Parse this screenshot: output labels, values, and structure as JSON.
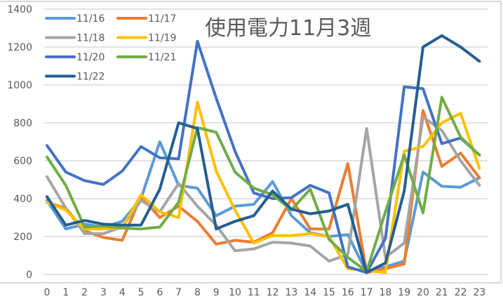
{
  "chart_data": {
    "type": "line",
    "title": "使用電力11月3週",
    "xlabel": "",
    "ylabel": "",
    "x": [
      0,
      1,
      2,
      3,
      4,
      5,
      6,
      7,
      8,
      9,
      10,
      11,
      12,
      13,
      14,
      15,
      16,
      17,
      18,
      19,
      20,
      21,
      22,
      23
    ],
    "y_ticks": [
      0,
      200,
      400,
      600,
      800,
      1000,
      1200,
      1400
    ],
    "ylim": [
      0,
      1400
    ],
    "grid": true,
    "legend_position": "top-left-inside",
    "series": [
      {
        "name": "11/16",
        "color": "#5B9BD5",
        "values": [
          390,
          240,
          265,
          250,
          280,
          400,
          700,
          470,
          455,
          310,
          360,
          370,
          490,
          310,
          220,
          200,
          210,
          10,
          40,
          70,
          540,
          465,
          460,
          510
        ]
      },
      {
        "name": "11/17",
        "color": "#ED7D31",
        "values": [
          380,
          350,
          230,
          195,
          180,
          410,
          300,
          360,
          280,
          160,
          180,
          170,
          220,
          400,
          240,
          240,
          585,
          10,
          30,
          55,
          865,
          570,
          640,
          510
        ]
      },
      {
        "name": "11/18",
        "color": "#A5A5A5",
        "values": [
          515,
          350,
          215,
          215,
          250,
          390,
          330,
          480,
          360,
          260,
          125,
          135,
          170,
          165,
          150,
          70,
          105,
          770,
          90,
          165,
          830,
          760,
          600,
          470
        ]
      },
      {
        "name": "11/19",
        "color": "#FFC000",
        "values": [
          380,
          340,
          240,
          240,
          245,
          420,
          330,
          300,
          910,
          545,
          340,
          165,
          205,
          205,
          215,
          200,
          30,
          20,
          10,
          650,
          675,
          800,
          850,
          560
        ]
      },
      {
        "name": "11/20",
        "color": "#4472C4",
        "values": [
          680,
          540,
          495,
          475,
          545,
          675,
          615,
          610,
          1230,
          930,
          650,
          430,
          400,
          405,
          470,
          430,
          40,
          10,
          190,
          990,
          980,
          690,
          720,
          630
        ]
      },
      {
        "name": "11/21",
        "color": "#70AD47",
        "values": [
          620,
          470,
          250,
          255,
          245,
          240,
          250,
          380,
          775,
          750,
          540,
          455,
          420,
          340,
          450,
          185,
          90,
          15,
          330,
          630,
          325,
          935,
          725,
          630
        ]
      },
      {
        "name": "11/22",
        "color": "#255E91",
        "values": [
          410,
          260,
          285,
          265,
          260,
          260,
          450,
          800,
          770,
          240,
          280,
          310,
          440,
          345,
          320,
          335,
          370,
          10,
          60,
          440,
          1200,
          1260,
          1200,
          1125
        ]
      }
    ]
  },
  "colors": {
    "gridline": "#D9D9D9",
    "text": "#595959",
    "background": "#FFFFFF"
  }
}
